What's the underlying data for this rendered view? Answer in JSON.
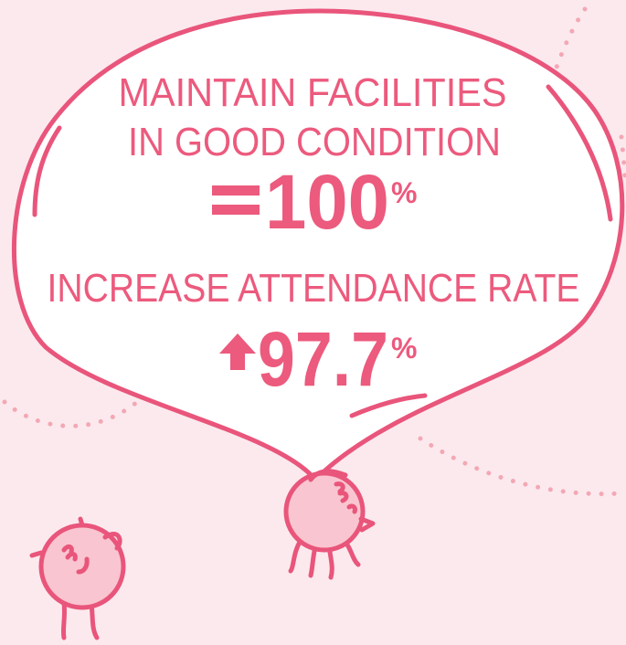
{
  "goals": [
    {
      "label_lines": [
        "MAINTAIN FACILITIES",
        "IN GOOD CONDITION"
      ],
      "value": "100",
      "unit": "%"
    },
    {
      "label_lines": [
        "INCREASE ATTENDANCE RATE"
      ],
      "value": "97.7",
      "unit": "%"
    }
  ]
}
